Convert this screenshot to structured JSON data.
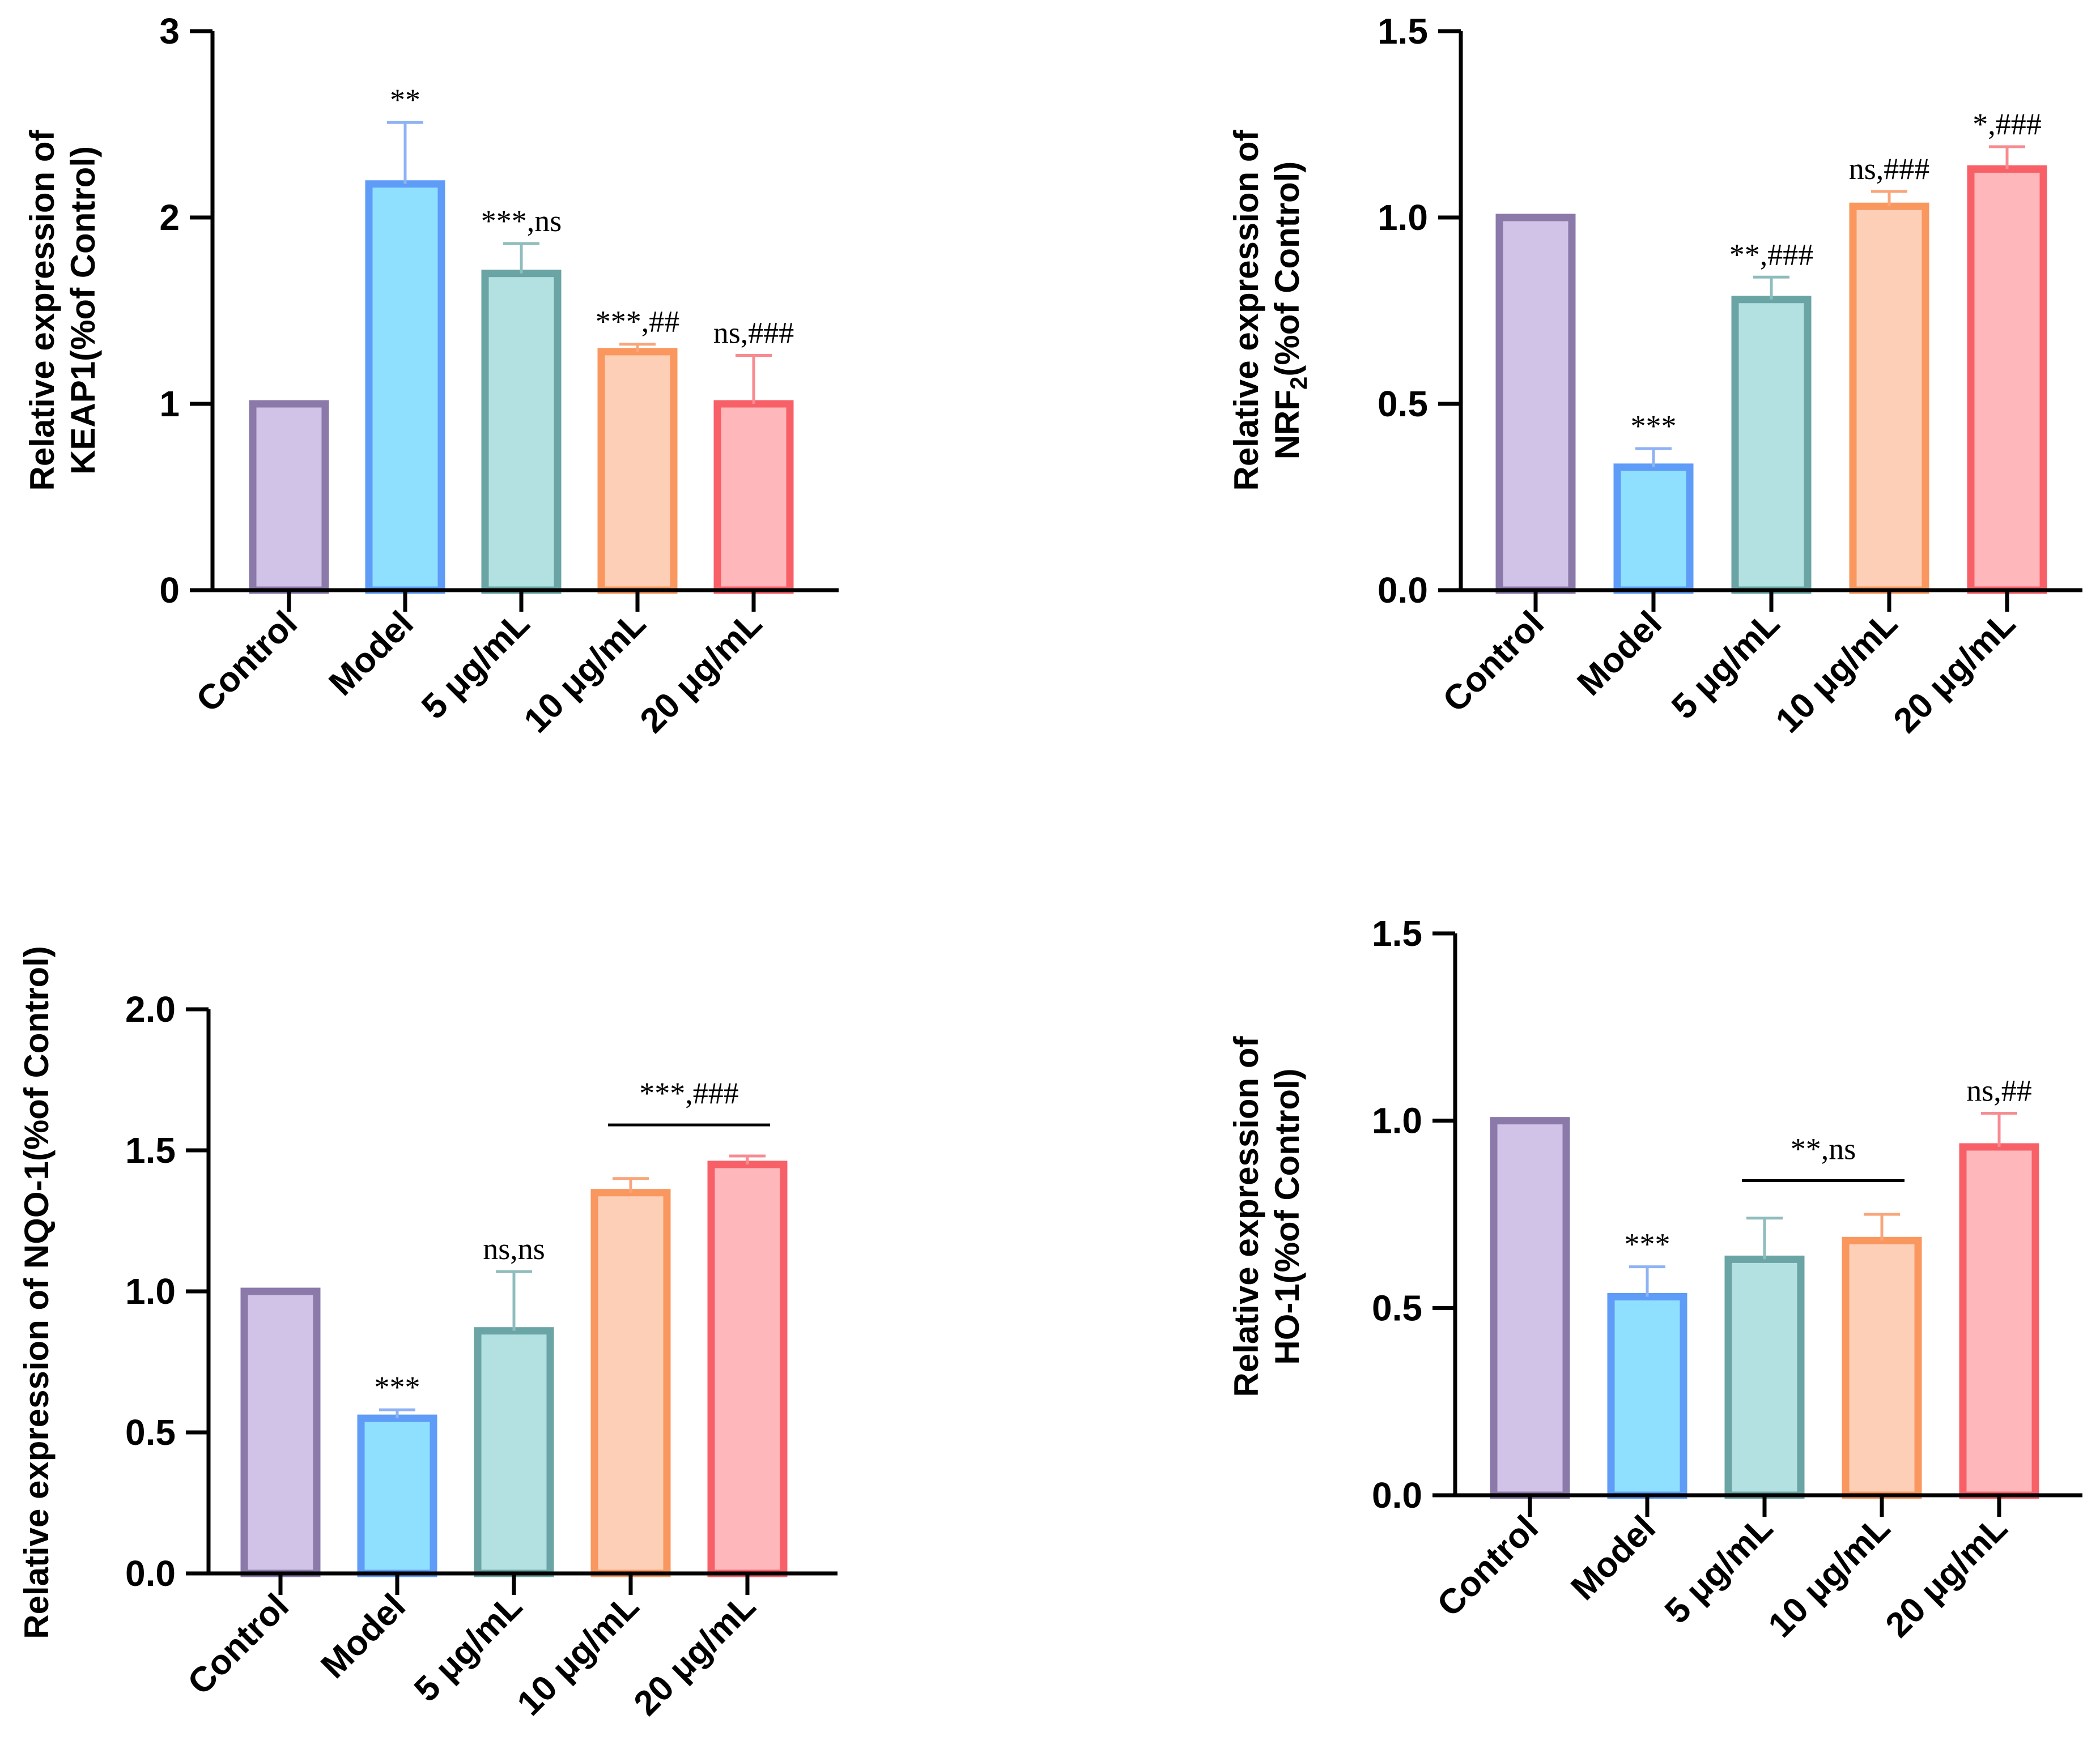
{
  "chart_data": [
    {
      "type": "bar",
      "id": "keap1",
      "ylabel": [
        "Relative expression of",
        "KEAP1(%of Control)"
      ],
      "categories": [
        "Control",
        "Model",
        "5 μg/mL",
        "10 μg/mL",
        "20 μg/mL"
      ],
      "values": [
        1.0,
        2.18,
        1.7,
        1.28,
        1.0
      ],
      "errors": [
        0.0,
        0.33,
        0.16,
        0.04,
        0.26
      ],
      "ylim": [
        0,
        3
      ],
      "yticks": [
        "0",
        "1",
        "2",
        "3"
      ],
      "ytick_values": [
        0,
        1,
        2,
        3
      ],
      "annotations": [
        "",
        "**",
        "***,ns",
        "***,##",
        "ns,###"
      ],
      "bracket": null
    },
    {
      "type": "bar",
      "id": "nrf2",
      "ylabel": [
        "Relative expression of",
        "NRF2(%of Control)"
      ],
      "categories": [
        "Control",
        "Model",
        "5 μg/mL",
        "10 μg/mL",
        "20 μg/mL"
      ],
      "values": [
        1.0,
        0.33,
        0.78,
        1.03,
        1.13
      ],
      "errors": [
        0.0,
        0.05,
        0.06,
        0.04,
        0.06
      ],
      "ylim": [
        0,
        1.5
      ],
      "yticks": [
        "0.0",
        "0.5",
        "1.0",
        "1.5"
      ],
      "ytick_values": [
        0,
        0.5,
        1.0,
        1.5
      ],
      "annotations": [
        "",
        "***",
        "**,###",
        "ns,###",
        "*,###"
      ],
      "bracket": null
    },
    {
      "type": "bar",
      "id": "nqo1",
      "ylabel": [
        "Relative expression of NQO-1(%of Control)"
      ],
      "categories": [
        "Control",
        "Model",
        "5 μg/mL",
        "10 μg/mL",
        "20 μg/mL"
      ],
      "values": [
        1.0,
        0.55,
        0.86,
        1.35,
        1.45
      ],
      "errors": [
        0.0,
        0.03,
        0.21,
        0.05,
        0.03
      ],
      "ylim": [
        0,
        2.0
      ],
      "yticks": [
        "0.0",
        "0.5",
        "1.0",
        "1.5",
        "2.0"
      ],
      "ytick_values": [
        0,
        0.5,
        1.0,
        1.5,
        2.0
      ],
      "annotations": [
        "",
        "***",
        "ns,ns",
        "",
        ""
      ],
      "bracket": {
        "from": 3,
        "to": 4,
        "label": "***,###",
        "y": 1.59
      }
    },
    {
      "type": "bar",
      "id": "ho1",
      "ylabel": [
        "Relative expression of",
        "HO-1(%of Control)"
      ],
      "categories": [
        "Control",
        "Model",
        "5 μg/mL",
        "10 μg/mL",
        "20 μg/mL"
      ],
      "values": [
        1.0,
        0.53,
        0.63,
        0.68,
        0.93
      ],
      "errors": [
        0.0,
        0.08,
        0.11,
        0.07,
        0.09
      ],
      "ylim": [
        0,
        1.5
      ],
      "yticks": [
        "0.0",
        "0.5",
        "1.0",
        "1.5"
      ],
      "ytick_values": [
        0,
        0.5,
        1.0,
        1.5
      ],
      "annotations": [
        "",
        "***",
        "",
        "",
        "ns,##"
      ],
      "bracket": {
        "from": 2,
        "to": 3,
        "label": "**,ns",
        "y": 0.84
      }
    }
  ],
  "style": {
    "bar_fill": [
      "#d1c3e7",
      "#8fdfff",
      "#b3e1e1",
      "#fccfb6",
      "#feb7bb"
    ],
    "bar_edge": [
      "#8a79a9",
      "#5e9cf7",
      "#6aa4a4",
      "#fa975e",
      "#f86068"
    ],
    "error_color": [
      "#8a79a9",
      "#8fb2f5",
      "#8fbcbc",
      "#f9a57a",
      "#f78b90"
    ]
  }
}
